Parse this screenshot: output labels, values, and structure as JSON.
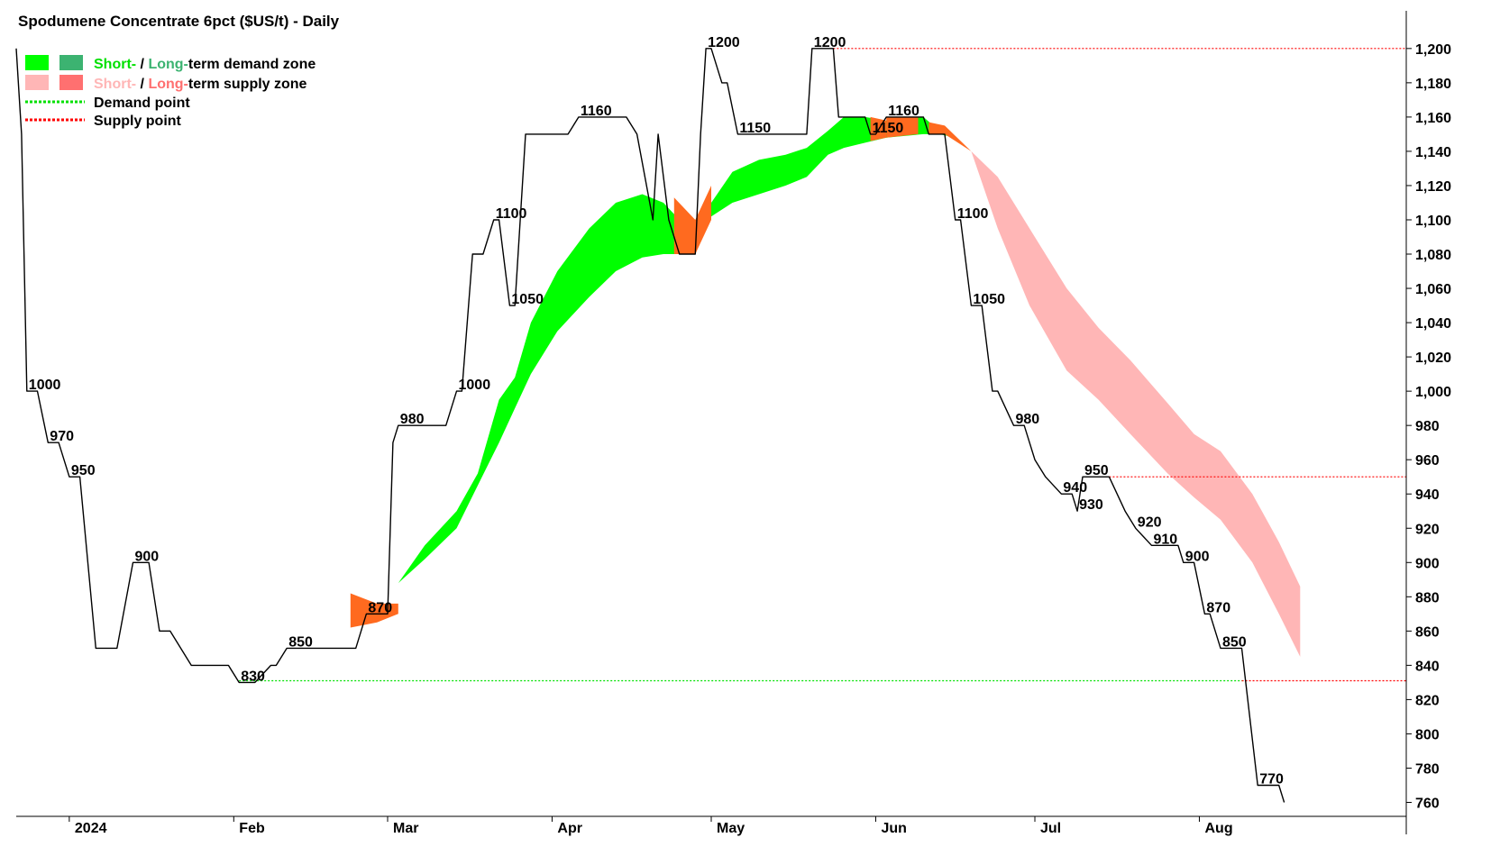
{
  "chart_data": {
    "type": "line",
    "title": "Spodumene Concentrate 6pct ($US/t) - Daily",
    "legend": {
      "placement": "top-left",
      "demand_zone": {
        "short": "Short-",
        "sep": " / ",
        "long": "Long-",
        "rest": "term demand zone"
      },
      "supply_zone": {
        "short": "Short-",
        "sep": " / ",
        "long": "Long-",
        "rest": "term supply zone"
      },
      "demand_point": "Demand point",
      "supply_point": "Supply point"
    },
    "colors": {
      "price_line": "#000000",
      "short_demand": "#00ff00",
      "long_demand": "#3cb371",
      "short_supply": "#ffb6b6",
      "long_supply": "#ff7070",
      "mixed_zone": "#ff6a1f",
      "demand_point": "#00e000",
      "supply_point": "#ff0000"
    },
    "y_axis": {
      "min": 755,
      "max": 1222,
      "ticks": [
        760,
        780,
        800,
        820,
        840,
        860,
        880,
        900,
        920,
        940,
        960,
        980,
        1000,
        1020,
        1040,
        1060,
        1080,
        1100,
        1120,
        1140,
        1160,
        1180,
        1200
      ],
      "tick_labels": [
        "760",
        "780",
        "800",
        "820",
        "840",
        "860",
        "880",
        "900",
        "920",
        "940",
        "960",
        "980",
        "1,000",
        "1,020",
        "1,040",
        "1,060",
        "1,080",
        "1,100",
        "1,120",
        "1,140",
        "1,160",
        "1,180",
        "1,200"
      ],
      "position": "right"
    },
    "x_axis": {
      "start": "2023-12-22",
      "end": "2024-09-09",
      "months": [
        {
          "date": "2024-01-01",
          "label": "2024"
        },
        {
          "date": "2024-02-01",
          "label": "Feb"
        },
        {
          "date": "2024-03-01",
          "label": "Mar"
        },
        {
          "date": "2024-04-01",
          "label": "Apr"
        },
        {
          "date": "2024-05-01",
          "label": "May"
        },
        {
          "date": "2024-06-01",
          "label": "Jun"
        },
        {
          "date": "2024-07-01",
          "label": "Jul"
        },
        {
          "date": "2024-08-01",
          "label": "Aug"
        }
      ]
    },
    "grid": false,
    "price_series": [
      [
        "2023-12-22",
        1200
      ],
      [
        "2023-12-23",
        1150
      ],
      [
        "2023-12-24",
        1000
      ],
      [
        "2023-12-26",
        1000
      ],
      [
        "2023-12-28",
        970
      ],
      [
        "2023-12-30",
        970
      ],
      [
        "2024-01-01",
        950
      ],
      [
        "2024-01-03",
        950
      ],
      [
        "2024-01-06",
        850
      ],
      [
        "2024-01-10",
        850
      ],
      [
        "2024-01-13",
        900
      ],
      [
        "2024-01-16",
        900
      ],
      [
        "2024-01-18",
        860
      ],
      [
        "2024-01-20",
        860
      ],
      [
        "2024-01-24",
        840
      ],
      [
        "2024-01-31",
        840
      ],
      [
        "2024-02-02",
        830
      ],
      [
        "2024-02-05",
        830
      ],
      [
        "2024-02-08",
        840
      ],
      [
        "2024-02-09",
        840
      ],
      [
        "2024-02-11",
        850
      ],
      [
        "2024-02-24",
        850
      ],
      [
        "2024-02-26",
        870
      ],
      [
        "2024-03-01",
        870
      ],
      [
        "2024-03-02",
        970
      ],
      [
        "2024-03-03",
        980
      ],
      [
        "2024-03-12",
        980
      ],
      [
        "2024-03-14",
        1000
      ],
      [
        "2024-03-15",
        1000
      ],
      [
        "2024-03-17",
        1080
      ],
      [
        "2024-03-19",
        1080
      ],
      [
        "2024-03-21",
        1100
      ],
      [
        "2024-03-22",
        1100
      ],
      [
        "2024-03-24",
        1050
      ],
      [
        "2024-03-25",
        1050
      ],
      [
        "2024-03-27",
        1150
      ],
      [
        "2024-04-04",
        1150
      ],
      [
        "2024-04-06",
        1160
      ],
      [
        "2024-04-15",
        1160
      ],
      [
        "2024-04-17",
        1150
      ],
      [
        "2024-04-20",
        1100
      ],
      [
        "2024-04-21",
        1150
      ],
      [
        "2024-04-23",
        1100
      ],
      [
        "2024-04-25",
        1080
      ],
      [
        "2024-04-28",
        1080
      ],
      [
        "2024-04-29",
        1150
      ],
      [
        "2024-04-30",
        1200
      ],
      [
        "2024-05-01",
        1200
      ],
      [
        "2024-05-03",
        1180
      ],
      [
        "2024-05-04",
        1180
      ],
      [
        "2024-05-06",
        1150
      ],
      [
        "2024-05-19",
        1150
      ],
      [
        "2024-05-20",
        1200
      ],
      [
        "2024-05-24",
        1200
      ],
      [
        "2024-05-25",
        1160
      ],
      [
        "2024-05-30",
        1160
      ],
      [
        "2024-05-31",
        1150
      ],
      [
        "2024-06-01",
        1150
      ],
      [
        "2024-06-03",
        1160
      ],
      [
        "2024-06-10",
        1160
      ],
      [
        "2024-06-11",
        1150
      ],
      [
        "2024-06-14",
        1150
      ],
      [
        "2024-06-16",
        1100
      ],
      [
        "2024-06-17",
        1100
      ],
      [
        "2024-06-19",
        1050
      ],
      [
        "2024-06-21",
        1050
      ],
      [
        "2024-06-23",
        1000
      ],
      [
        "2024-06-24",
        1000
      ],
      [
        "2024-06-27",
        980
      ],
      [
        "2024-06-29",
        980
      ],
      [
        "2024-07-01",
        960
      ],
      [
        "2024-07-03",
        950
      ],
      [
        "2024-07-06",
        940
      ],
      [
        "2024-07-08",
        940
      ],
      [
        "2024-07-09",
        930
      ],
      [
        "2024-07-10",
        950
      ],
      [
        "2024-07-15",
        950
      ],
      [
        "2024-07-18",
        930
      ],
      [
        "2024-07-20",
        920
      ],
      [
        "2024-07-23",
        910
      ],
      [
        "2024-07-28",
        910
      ],
      [
        "2024-07-29",
        900
      ],
      [
        "2024-07-31",
        900
      ],
      [
        "2024-08-02",
        870
      ],
      [
        "2024-08-03",
        870
      ],
      [
        "2024-08-05",
        850
      ],
      [
        "2024-08-09",
        850
      ],
      [
        "2024-08-12",
        770
      ],
      [
        "2024-08-16",
        770
      ],
      [
        "2024-08-17",
        760
      ]
    ],
    "annotations": [
      {
        "date": "2023-12-24",
        "value": 1000,
        "label": "1000"
      },
      {
        "date": "2023-12-28",
        "value": 970,
        "label": "970"
      },
      {
        "date": "2024-01-01",
        "value": 950,
        "label": "950"
      },
      {
        "date": "2024-01-13",
        "value": 900,
        "label": "900"
      },
      {
        "date": "2024-02-02",
        "value": 830,
        "label": "830"
      },
      {
        "date": "2024-02-11",
        "value": 850,
        "label": "850"
      },
      {
        "date": "2024-02-26",
        "value": 870,
        "label": "870"
      },
      {
        "date": "2024-03-03",
        "value": 980,
        "label": "980"
      },
      {
        "date": "2024-03-14",
        "value": 1000,
        "label": "1000"
      },
      {
        "date": "2024-03-21",
        "value": 1100,
        "label": "1100"
      },
      {
        "date": "2024-03-24",
        "value": 1050,
        "label": "1050"
      },
      {
        "date": "2024-04-06",
        "value": 1160,
        "label": "1160"
      },
      {
        "date": "2024-04-30",
        "value": 1200,
        "label": "1200"
      },
      {
        "date": "2024-05-06",
        "value": 1150,
        "label": "1150"
      },
      {
        "date": "2024-05-20",
        "value": 1200,
        "label": "1200"
      },
      {
        "date": "2024-05-31",
        "value": 1150,
        "label": "1150"
      },
      {
        "date": "2024-06-03",
        "value": 1160,
        "label": "1160"
      },
      {
        "date": "2024-06-16",
        "value": 1100,
        "label": "1100"
      },
      {
        "date": "2024-06-19",
        "value": 1050,
        "label": "1050"
      },
      {
        "date": "2024-06-27",
        "value": 980,
        "label": "980"
      },
      {
        "date": "2024-07-06",
        "value": 940,
        "label": "940"
      },
      {
        "date": "2024-07-09",
        "value": 930,
        "label": "930"
      },
      {
        "date": "2024-07-10",
        "value": 950,
        "label": "950"
      },
      {
        "date": "2024-07-20",
        "value": 920,
        "label": "920"
      },
      {
        "date": "2024-07-23",
        "value": 910,
        "label": "910"
      },
      {
        "date": "2024-07-29",
        "value": 900,
        "label": "900"
      },
      {
        "date": "2024-08-02",
        "value": 870,
        "label": "870"
      },
      {
        "date": "2024-08-05",
        "value": 850,
        "label": "850"
      },
      {
        "date": "2024-08-12",
        "value": 770,
        "label": "770"
      }
    ],
    "demand_zone": {
      "upper": [
        [
          "2024-03-03",
          888
        ],
        [
          "2024-03-08",
          910
        ],
        [
          "2024-03-14",
          930
        ],
        [
          "2024-03-18",
          952
        ],
        [
          "2024-03-22",
          995
        ],
        [
          "2024-03-25",
          1008
        ],
        [
          "2024-03-28",
          1040
        ],
        [
          "2024-04-02",
          1070
        ],
        [
          "2024-04-08",
          1095
        ],
        [
          "2024-04-13",
          1110
        ],
        [
          "2024-04-18",
          1115
        ],
        [
          "2024-04-22",
          1110
        ],
        [
          "2024-04-25",
          1100
        ],
        [
          "2024-04-28",
          1100
        ],
        [
          "2024-05-01",
          1110
        ],
        [
          "2024-05-05",
          1128
        ],
        [
          "2024-05-10",
          1135
        ],
        [
          "2024-05-15",
          1138
        ],
        [
          "2024-05-19",
          1142
        ],
        [
          "2024-05-23",
          1152
        ],
        [
          "2024-05-26",
          1160
        ],
        [
          "2024-05-30",
          1160
        ],
        [
          "2024-06-03",
          1158
        ],
        [
          "2024-06-10",
          1160
        ],
        [
          "2024-06-13",
          1152
        ],
        [
          "2024-06-16",
          1148
        ],
        [
          "2024-06-19",
          1140
        ]
      ],
      "lower": [
        [
          "2024-06-19",
          1140
        ],
        [
          "2024-06-16",
          1148
        ],
        [
          "2024-06-13",
          1150
        ],
        [
          "2024-06-10",
          1150
        ],
        [
          "2024-06-03",
          1148
        ],
        [
          "2024-05-30",
          1145
        ],
        [
          "2024-05-26",
          1142
        ],
        [
          "2024-05-23",
          1138
        ],
        [
          "2024-05-19",
          1125
        ],
        [
          "2024-05-15",
          1120
        ],
        [
          "2024-05-10",
          1115
        ],
        [
          "2024-05-05",
          1110
        ],
        [
          "2024-05-01",
          1102
        ],
        [
          "2024-04-28",
          1090
        ],
        [
          "2024-04-25",
          1080
        ],
        [
          "2024-04-22",
          1080
        ],
        [
          "2024-04-18",
          1078
        ],
        [
          "2024-04-13",
          1070
        ],
        [
          "2024-04-08",
          1055
        ],
        [
          "2024-04-02",
          1035
        ],
        [
          "2024-03-28",
          1010
        ],
        [
          "2024-03-25",
          990
        ],
        [
          "2024-03-22",
          970
        ],
        [
          "2024-03-18",
          945
        ],
        [
          "2024-03-14",
          920
        ],
        [
          "2024-03-08",
          902
        ],
        [
          "2024-03-03",
          888
        ]
      ]
    },
    "mixed_zones": [
      {
        "start": "2024-02-23",
        "end": "2024-03-03",
        "upper": [
          [
            "2024-02-23",
            882
          ],
          [
            "2024-02-28",
            876
          ],
          [
            "2024-03-03",
            876
          ]
        ],
        "lower": [
          [
            "2024-02-23",
            862
          ],
          [
            "2024-02-28",
            865
          ],
          [
            "2024-03-03",
            870
          ]
        ]
      },
      {
        "start": "2024-04-24",
        "end": "2024-05-01",
        "upper": [
          [
            "2024-04-24",
            1113
          ],
          [
            "2024-04-28",
            1100
          ],
          [
            "2024-05-01",
            1120
          ]
        ],
        "lower": [
          [
            "2024-04-24",
            1080
          ],
          [
            "2024-04-28",
            1080
          ],
          [
            "2024-05-01",
            1100
          ]
        ]
      },
      {
        "start": "2024-05-31",
        "end": "2024-06-03",
        "upper": [
          [
            "2024-05-31",
            1160
          ],
          [
            "2024-06-03",
            1158
          ]
        ],
        "lower": [
          [
            "2024-05-31",
            1146
          ],
          [
            "2024-06-03",
            1148
          ]
        ]
      },
      {
        "start": "2024-06-03",
        "end": "2024-06-09",
        "upper": [
          [
            "2024-06-03",
            1160
          ],
          [
            "2024-06-09",
            1160
          ]
        ],
        "lower": [
          [
            "2024-06-03",
            1148
          ],
          [
            "2024-06-09",
            1150
          ]
        ]
      },
      {
        "start": "2024-06-11",
        "end": "2024-06-19",
        "upper": [
          [
            "2024-06-11",
            1157
          ],
          [
            "2024-06-14",
            1155
          ],
          [
            "2024-06-19",
            1140
          ]
        ],
        "lower": [
          [
            "2024-06-11",
            1150
          ],
          [
            "2024-06-14",
            1150
          ],
          [
            "2024-06-19",
            1140
          ]
        ]
      }
    ],
    "supply_zone": {
      "upper": [
        [
          "2024-06-19",
          1140
        ],
        [
          "2024-06-24",
          1125
        ],
        [
          "2024-06-30",
          1095
        ],
        [
          "2024-07-07",
          1060
        ],
        [
          "2024-07-13",
          1037
        ],
        [
          "2024-07-19",
          1018
        ],
        [
          "2024-07-26",
          993
        ],
        [
          "2024-07-31",
          975
        ],
        [
          "2024-08-05",
          965
        ],
        [
          "2024-08-11",
          940
        ],
        [
          "2024-08-16",
          912
        ],
        [
          "2024-08-20",
          886
        ]
      ],
      "lower": [
        [
          "2024-08-20",
          845
        ],
        [
          "2024-08-16",
          870
        ],
        [
          "2024-08-11",
          900
        ],
        [
          "2024-08-05",
          925
        ],
        [
          "2024-07-31",
          938
        ],
        [
          "2024-07-26",
          952
        ],
        [
          "2024-07-19",
          975
        ],
        [
          "2024-07-13",
          995
        ],
        [
          "2024-07-07",
          1012
        ],
        [
          "2024-06-30",
          1050
        ],
        [
          "2024-06-24",
          1095
        ],
        [
          "2024-06-19",
          1140
        ]
      ]
    },
    "supply_points": [
      {
        "value": 1200,
        "from": "2024-05-24",
        "to": "2024-09-09"
      },
      {
        "value": 950,
        "from": "2024-07-15",
        "to": "2024-09-09"
      },
      {
        "value": 831,
        "from": "2024-08-09",
        "to": "2024-09-09"
      }
    ],
    "demand_points": [
      {
        "value": 831,
        "from": "2024-02-02",
        "to": "2024-08-09"
      }
    ]
  }
}
